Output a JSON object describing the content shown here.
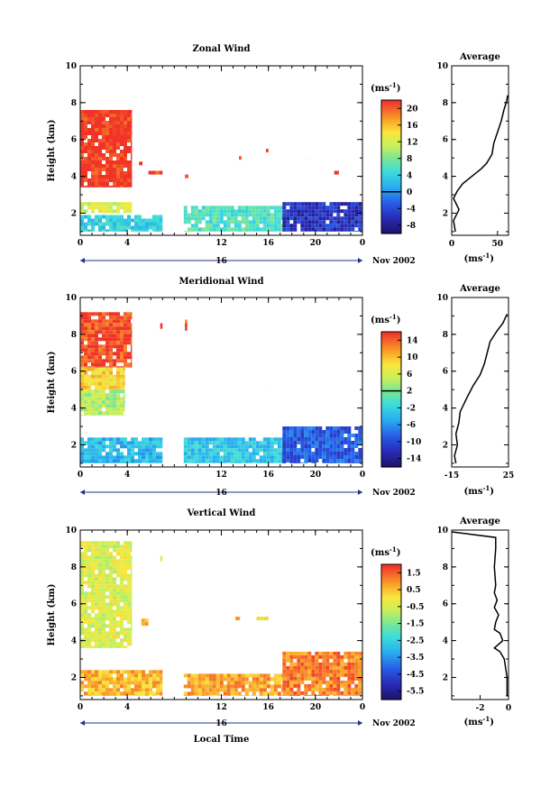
{
  "chart_data": [
    {
      "type": "heatmap",
      "title": "Zonal Wind",
      "ylabel": "Height (km)",
      "xlabel": "",
      "x_ticks": [
        "0",
        "4",
        "12",
        "16",
        "20",
        "0"
      ],
      "x_tick_values": [
        0,
        4,
        12,
        16,
        20,
        24
      ],
      "xlim": [
        0,
        24
      ],
      "y_ticks": [
        "2",
        "4",
        "6",
        "8",
        "10"
      ],
      "y_tick_values": [
        2,
        4,
        6,
        8,
        10
      ],
      "ylim": [
        0.8,
        10
      ],
      "day_label": "16",
      "date_label": "Nov 2002",
      "colorbar_unit": "(ms",
      "colorbar_ticks": [
        "20",
        "16",
        "12",
        "8",
        "4",
        "0",
        "-4",
        "-8"
      ],
      "colorbar_values": [
        20,
        16,
        12,
        8,
        4,
        0,
        -4,
        -8
      ],
      "colorbar_range": [
        -10,
        22
      ],
      "regions": [
        {
          "x0": 0,
          "x1": 4.4,
          "y0": 3.4,
          "y1": 7.6,
          "value": 22
        },
        {
          "x0": 0,
          "x1": 4.4,
          "y0": 2.0,
          "y1": 2.6,
          "value": 12
        },
        {
          "x0": 0,
          "x1": 7.0,
          "y0": 1.0,
          "y1": 1.9,
          "value": 4
        },
        {
          "x0": 8.8,
          "x1": 17.2,
          "y0": 1.0,
          "y1": 2.4,
          "value": 6
        },
        {
          "x0": 17.2,
          "x1": 24,
          "y0": 1.0,
          "y1": 2.6,
          "value": -6
        },
        {
          "x0": 5.0,
          "x1": 5.3,
          "y0": 4.6,
          "y1": 4.8,
          "value": 22
        },
        {
          "x0": 5.8,
          "x1": 7.0,
          "y0": 4.1,
          "y1": 4.3,
          "value": 22
        },
        {
          "x0": 8.9,
          "x1": 9.2,
          "y0": 3.9,
          "y1": 4.1,
          "value": 22
        },
        {
          "x0": 13.5,
          "x1": 13.7,
          "y0": 4.9,
          "y1": 5.1,
          "value": 22
        },
        {
          "x0": 15.8,
          "x1": 16.0,
          "y0": 5.3,
          "y1": 5.5,
          "value": 22
        },
        {
          "x0": 19.4,
          "x1": 19.6,
          "y0": 5.0,
          "y1": 5.2,
          "value": 22
        },
        {
          "x0": 21.6,
          "x1": 22.0,
          "y0": 4.1,
          "y1": 4.3,
          "value": 22
        }
      ],
      "average_profile": {
        "title": "Average",
        "xlabel": "(ms",
        "x_ticks": [
          "0",
          "50"
        ],
        "x_tick_values": [
          0,
          50
        ],
        "xlim": [
          0,
          62
        ],
        "y_ticks": [
          "2",
          "4",
          "6",
          "8",
          "10"
        ],
        "y_tick_values": [
          2,
          4,
          6,
          8,
          10
        ],
        "ylim": [
          0.8,
          10
        ],
        "points": [
          [
            4,
            1.0
          ],
          [
            2,
            1.6
          ],
          [
            8,
            2.2
          ],
          [
            2,
            2.8
          ],
          [
            6,
            3.2
          ],
          [
            12,
            3.6
          ],
          [
            22,
            4.0
          ],
          [
            32,
            4.4
          ],
          [
            38,
            4.7
          ],
          [
            44,
            5.2
          ],
          [
            46,
            5.8
          ],
          [
            50,
            6.4
          ],
          [
            54,
            7.0
          ],
          [
            57,
            7.6
          ],
          [
            60,
            8.1
          ],
          [
            61,
            8.4
          ]
        ]
      }
    },
    {
      "type": "heatmap",
      "title": "Meridional Wind",
      "ylabel": "Height (km)",
      "xlabel": "",
      "x_ticks": [
        "0",
        "4",
        "12",
        "16",
        "20",
        "0"
      ],
      "x_tick_values": [
        0,
        4,
        12,
        16,
        20,
        24
      ],
      "xlim": [
        0,
        24
      ],
      "y_ticks": [
        "2",
        "4",
        "6",
        "8",
        "10"
      ],
      "y_tick_values": [
        2,
        4,
        6,
        8,
        10
      ],
      "ylim": [
        0.8,
        10
      ],
      "day_label": "16",
      "date_label": "Nov 2002",
      "colorbar_unit": "(ms",
      "colorbar_ticks": [
        "14",
        "10",
        "6",
        "2",
        "-2",
        "-6",
        "-10",
        "-14"
      ],
      "colorbar_values": [
        14,
        10,
        6,
        2,
        -2,
        -6,
        -10,
        -14
      ],
      "colorbar_range": [
        -16,
        16
      ],
      "regions": [
        {
          "x0": 0,
          "x1": 4.4,
          "y0": 6.2,
          "y1": 9.2,
          "value": 15
        },
        {
          "x0": 0,
          "x1": 3.8,
          "y0": 5.0,
          "y1": 6.2,
          "value": 9
        },
        {
          "x0": 0,
          "x1": 3.8,
          "y0": 3.6,
          "y1": 5.0,
          "value": 4
        },
        {
          "x0": 0,
          "x1": 7.0,
          "y0": 1.0,
          "y1": 2.4,
          "value": -4
        },
        {
          "x0": 8.8,
          "x1": 17.2,
          "y0": 1.0,
          "y1": 2.4,
          "value": -3
        },
        {
          "x0": 17.2,
          "x1": 24,
          "y0": 1.0,
          "y1": 3.0,
          "value": -9
        },
        {
          "x0": 6.8,
          "x1": 7.0,
          "y0": 8.3,
          "y1": 8.6,
          "value": 15
        },
        {
          "x0": 8.9,
          "x1": 9.1,
          "y0": 8.2,
          "y1": 8.8,
          "value": 15
        },
        {
          "x0": 15.8,
          "x1": 16.0,
          "y0": 5.2,
          "y1": 5.4,
          "value": 10
        }
      ],
      "average_profile": {
        "title": "Average",
        "xlabel": "(ms",
        "x_ticks": [
          "-15",
          "25"
        ],
        "x_tick_values": [
          -15,
          25
        ],
        "xlim": [
          -15,
          25
        ],
        "y_ticks": [
          "2",
          "4",
          "6",
          "8",
          "10"
        ],
        "y_tick_values": [
          2,
          4,
          6,
          8,
          10
        ],
        "ylim": [
          0.8,
          10
        ],
        "points": [
          [
            -12,
            1.0
          ],
          [
            -13,
            1.4
          ],
          [
            -11,
            2.0
          ],
          [
            -12,
            2.6
          ],
          [
            -10,
            3.2
          ],
          [
            -9,
            3.8
          ],
          [
            -4,
            4.6
          ],
          [
            0,
            5.2
          ],
          [
            5,
            5.8
          ],
          [
            8,
            6.4
          ],
          [
            10,
            7.0
          ],
          [
            12,
            7.6
          ],
          [
            17,
            8.2
          ],
          [
            21,
            8.6
          ],
          [
            24,
            9.1
          ]
        ]
      }
    },
    {
      "type": "heatmap",
      "title": "Vertical Wind",
      "ylabel": "Height (km)",
      "xlabel": "Local Time",
      "x_ticks": [
        "0",
        "4",
        "12",
        "16",
        "20",
        "0"
      ],
      "x_tick_values": [
        0,
        4,
        12,
        16,
        20,
        24
      ],
      "xlim": [
        0,
        24
      ],
      "y_ticks": [
        "2",
        "4",
        "6",
        "8",
        "10"
      ],
      "y_tick_values": [
        2,
        4,
        6,
        8,
        10
      ],
      "ylim": [
        0.8,
        10
      ],
      "day_label": "16",
      "date_label": "Nov 2002",
      "colorbar_unit": "(ms",
      "colorbar_ticks": [
        "1.5",
        "0.5",
        "-0.5",
        "-1.5",
        "-2.5",
        "-3.5",
        "-4.5",
        "-5.5"
      ],
      "colorbar_values": [
        1.5,
        0.5,
        -0.5,
        -1.5,
        -2.5,
        -3.5,
        -4.5,
        -5.5
      ],
      "colorbar_range": [
        -6,
        2
      ],
      "regions": [
        {
          "x0": 0,
          "x1": 4.4,
          "y0": 3.6,
          "y1": 9.4,
          "value": -0.4
        },
        {
          "x0": 0,
          "x1": 7.0,
          "y0": 1.0,
          "y1": 2.4,
          "value": 0.6
        },
        {
          "x0": 8.8,
          "x1": 17.2,
          "y0": 1.0,
          "y1": 2.2,
          "value": 0.8
        },
        {
          "x0": 17.2,
          "x1": 24,
          "y0": 1.0,
          "y1": 3.4,
          "value": 1.2
        },
        {
          "x0": 5.2,
          "x1": 5.8,
          "y0": 4.8,
          "y1": 5.2,
          "value": 0.6
        },
        {
          "x0": 6.8,
          "x1": 7.0,
          "y0": 8.3,
          "y1": 8.6,
          "value": -0.4
        },
        {
          "x0": 13.2,
          "x1": 13.6,
          "y0": 5.1,
          "y1": 5.3,
          "value": 0.4
        },
        {
          "x0": 15.0,
          "x1": 16.0,
          "y0": 5.1,
          "y1": 5.3,
          "value": 0.0
        }
      ],
      "average_profile": {
        "title": "Average",
        "xlabel": "(ms",
        "x_ticks": [
          "-2",
          "0"
        ],
        "x_tick_values": [
          -2,
          0
        ],
        "xlim": [
          -4,
          0
        ],
        "y_ticks": [
          "2",
          "4",
          "6",
          "8",
          "10"
        ],
        "y_tick_values": [
          2,
          4,
          6,
          8,
          10
        ],
        "ylim": [
          0.8,
          10
        ],
        "points": [
          [
            -0.1,
            1.0
          ],
          [
            -0.1,
            2.0
          ],
          [
            -0.3,
            3.0
          ],
          [
            -0.6,
            3.4
          ],
          [
            -1.0,
            3.6
          ],
          [
            -0.4,
            4.0
          ],
          [
            -0.6,
            4.4
          ],
          [
            -1.0,
            4.6
          ],
          [
            -0.9,
            5.0
          ],
          [
            -0.7,
            5.4
          ],
          [
            -1.0,
            5.8
          ],
          [
            -0.8,
            6.2
          ],
          [
            -1.0,
            6.6
          ],
          [
            -0.9,
            7.0
          ],
          [
            -1.0,
            8.0
          ],
          [
            -0.9,
            9.0
          ],
          [
            -0.9,
            9.6
          ],
          [
            -4.0,
            9.9
          ]
        ]
      }
    }
  ]
}
